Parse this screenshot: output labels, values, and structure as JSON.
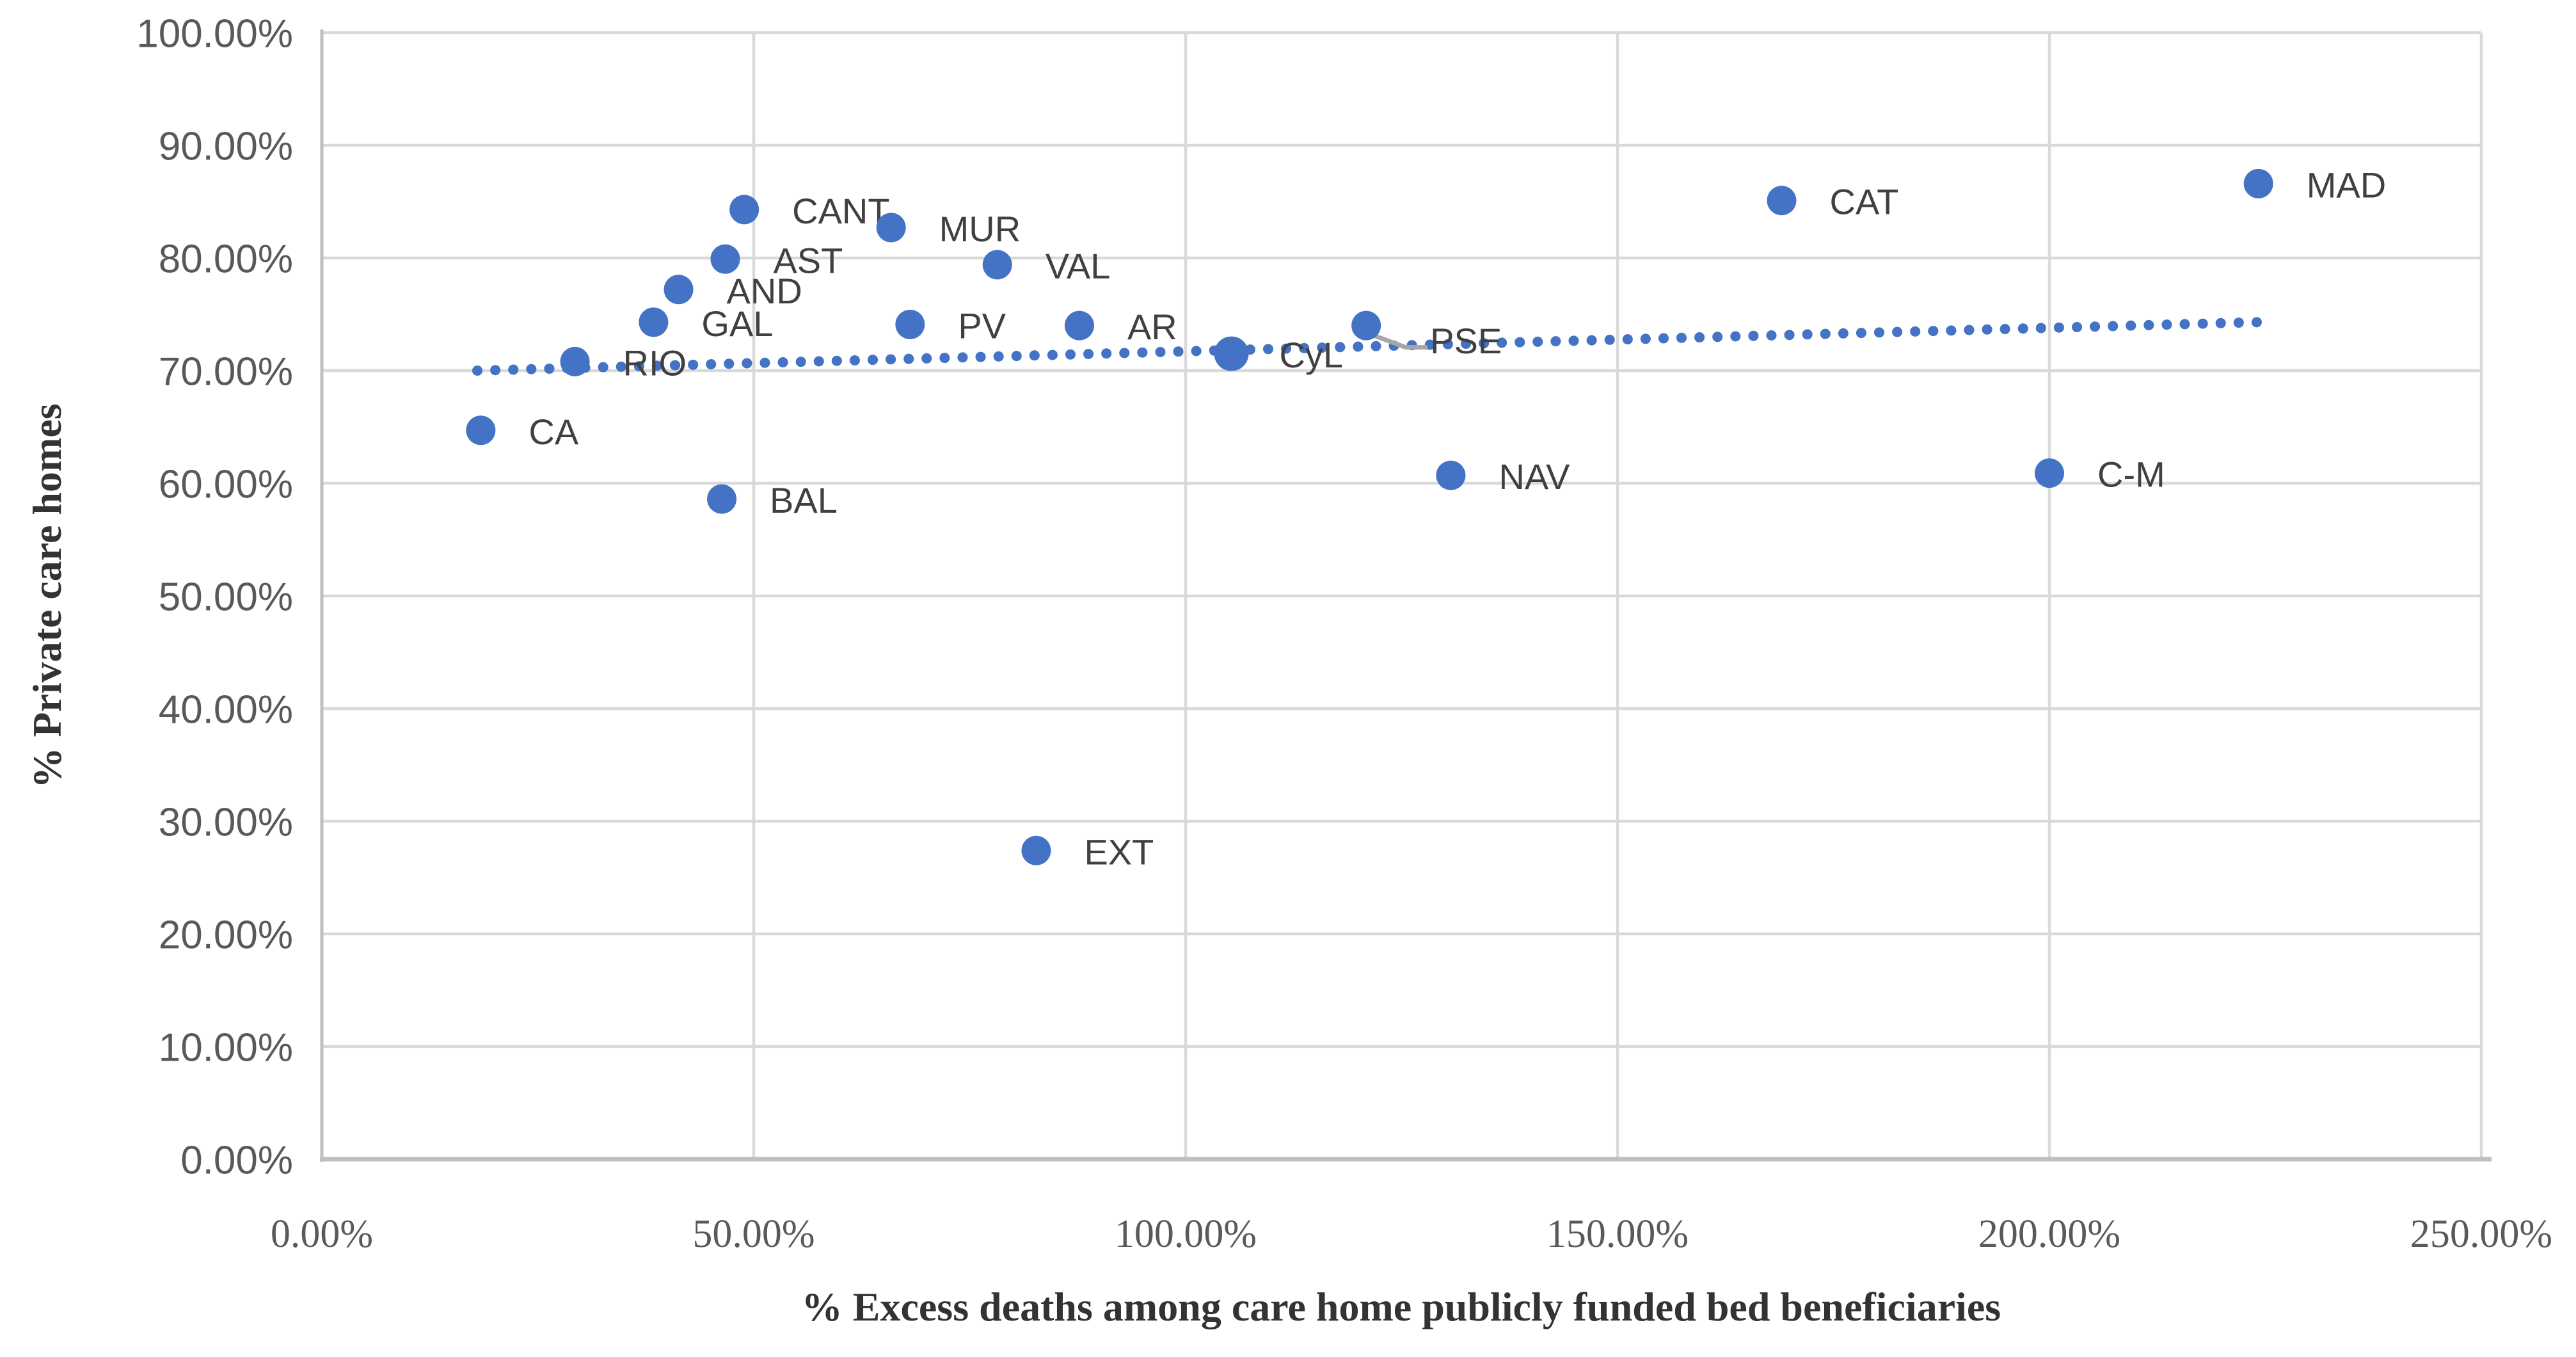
{
  "chart_data": {
    "type": "scatter",
    "title": "",
    "xlabel": "% Excess deaths among care home publicly funded bed beneficiaries",
    "ylabel": "% Private care homes",
    "xlim": [
      0,
      250
    ],
    "ylim": [
      0,
      100
    ],
    "x_tick_values": [
      0,
      50,
      100,
      150,
      200,
      250
    ],
    "x_tick_labels": [
      "0.00%",
      "50.00%",
      "100.00%",
      "150.00%",
      "200.00%",
      "250.00%"
    ],
    "y_tick_values": [
      0,
      10,
      20,
      30,
      40,
      50,
      60,
      70,
      80,
      90,
      100
    ],
    "y_tick_labels": [
      "0.00%",
      "10.00%",
      "20.00%",
      "30.00%",
      "40.00%",
      "50.00%",
      "60.00%",
      "70.00%",
      "80.00%",
      "90.00%",
      "100.00%"
    ],
    "grid": true,
    "legend": "none",
    "point_color": "#4472C4",
    "trend_color": "#4472C4",
    "gridline_color": "#D9D9D9",
    "axis_line_color": "#BFBFBF",
    "tick_label_color": "#595959",
    "data_label_color": "#404040",
    "leader_line_color": "#A6A6A6",
    "points": [
      {
        "label": "CA",
        "x": 18.4,
        "y": 64.7
      },
      {
        "label": "RIO",
        "x": 29.3,
        "y": 70.8
      },
      {
        "label": "GAL",
        "x": 38.4,
        "y": 74.3
      },
      {
        "label": "AND",
        "x": 41.3,
        "y": 77.2
      },
      {
        "label": "BAL",
        "x": 46.3,
        "y": 58.6
      },
      {
        "label": "AST",
        "x": 46.7,
        "y": 79.9
      },
      {
        "label": "CANT",
        "x": 48.9,
        "y": 84.3
      },
      {
        "label": "MUR",
        "x": 65.9,
        "y": 82.7
      },
      {
        "label": "PV",
        "x": 68.1,
        "y": 74.1
      },
      {
        "label": "VAL",
        "x": 78.2,
        "y": 79.4
      },
      {
        "label": "EXT",
        "x": 82.7,
        "y": 27.4
      },
      {
        "label": "AR",
        "x": 87.7,
        "y": 74.0
      },
      {
        "label": "CyL",
        "x": 105.3,
        "y": 71.5,
        "r": 27
      },
      {
        "label": "PSE",
        "x": 120.9,
        "y": 74.0,
        "label_dx": 100,
        "label_dy": 24,
        "leader": true
      },
      {
        "label": "NAV",
        "x": 130.7,
        "y": 60.7
      },
      {
        "label": "CAT",
        "x": 169.0,
        "y": 85.1
      },
      {
        "label": "C-M",
        "x": 200.0,
        "y": 60.9
      },
      {
        "label": "MAD",
        "x": 224.2,
        "y": 86.6
      }
    ],
    "trendline": {
      "style": "dotted",
      "x1": 18.0,
      "y1": 70.0,
      "x2": 224.0,
      "y2": 74.3
    }
  }
}
